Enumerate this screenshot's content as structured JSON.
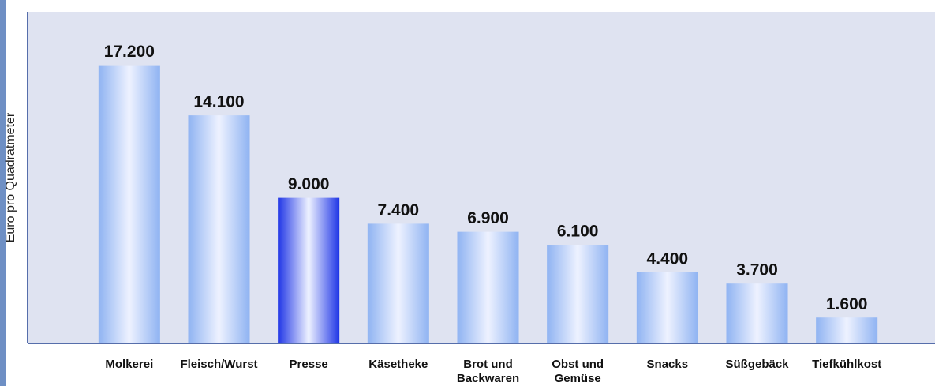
{
  "chart_data": {
    "type": "bar",
    "y_label": "Euro pro Quadratmeter",
    "categories": [
      [
        "Molkerei"
      ],
      [
        "Fleisch/Wurst"
      ],
      [
        "Presse"
      ],
      [
        "Käsetheke"
      ],
      [
        "Brot und",
        "Backwaren"
      ],
      [
        "Obst und",
        "Gemüse"
      ],
      [
        "Snacks"
      ],
      [
        "Süßgebäck"
      ],
      [
        "Tiefkühlkost"
      ]
    ],
    "values": [
      17200,
      14100,
      9000,
      7400,
      6900,
      6100,
      4400,
      3700,
      1600
    ],
    "value_labels": [
      "17.200",
      "14.100",
      "9.000",
      "7.400",
      "6.900",
      "6.100",
      "4.400",
      "3.700",
      "1.600"
    ],
    "colors": [
      "#8fb3f2",
      "#8fb3f2",
      "#1f35e6",
      "#8fb3f2",
      "#8fb3f2",
      "#8fb3f2",
      "#8fb3f2",
      "#8fb3f2",
      "#8fb3f2"
    ],
    "ylim": [
      0,
      20500
    ],
    "grid": false
  }
}
